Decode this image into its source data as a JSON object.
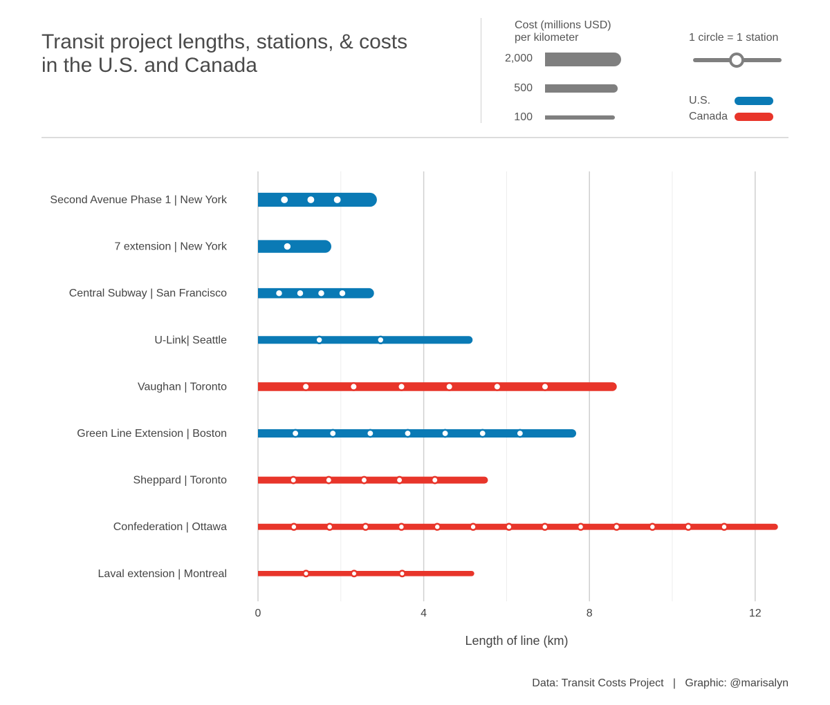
{
  "header": {
    "title_line1": "Transit project lengths, stations, & costs",
    "title_line2": "in the U.S. and Canada"
  },
  "legend": {
    "cost_title_line1": "Cost (millions USD)",
    "cost_title_line2": "per kilometer",
    "cost_levels": [
      {
        "label": "2,000",
        "value": 2000
      },
      {
        "label": "500",
        "value": 500
      },
      {
        "label": "100",
        "value": 100
      }
    ],
    "station_title": "1 circle = 1 station",
    "countries": [
      {
        "label": "U.S.",
        "color": "#0a7ab5"
      },
      {
        "label": "Canada",
        "color": "#e8352a"
      }
    ],
    "neutral_color": "#7f7f7f"
  },
  "chart_data": {
    "type": "bar",
    "xlabel": "Length of line (km)",
    "xlim": [
      0,
      12.6
    ],
    "xticks": [
      0,
      4,
      8,
      12
    ],
    "grid": true,
    "grid_minor": [
      2,
      6,
      10
    ],
    "projects": [
      {
        "name": "Second Avenue Phase 1 | New York",
        "country": "U.S.",
        "length_km": 2.87,
        "stations": 3,
        "cost_per_km": 2000
      },
      {
        "name": "7 extension | New York",
        "country": "U.S.",
        "length_km": 1.77,
        "stations": 1,
        "cost_per_km": 1600
      },
      {
        "name": "Central Subway | San Francisco",
        "country": "U.S.",
        "length_km": 2.8,
        "stations": 4,
        "cost_per_km": 900
      },
      {
        "name": "U-Link| Seattle",
        "country": "U.S.",
        "length_km": 5.18,
        "stations": 2,
        "cost_per_km": 450
      },
      {
        "name": "Vaughan | Toronto",
        "country": "Canada",
        "length_km": 8.66,
        "stations": 6,
        "cost_per_km": 620
      },
      {
        "name": "Green Line Extension | Boston",
        "country": "U.S.",
        "length_km": 7.68,
        "stations": 7,
        "cost_per_km": 560
      },
      {
        "name": "Sheppard | Toronto",
        "country": "Canada",
        "length_km": 5.55,
        "stations": 5,
        "cost_per_km": 330
      },
      {
        "name": "Confederation | Ottawa",
        "country": "Canada",
        "length_km": 12.55,
        "stations": 13,
        "cost_per_km": 230
      },
      {
        "name": "Laval extension | Montreal",
        "country": "Canada",
        "length_km": 5.22,
        "stations": 3,
        "cost_per_km": 150
      }
    ]
  },
  "footer": {
    "credit": "Data: Transit Costs Project   |   Graphic: @marisalyn"
  }
}
